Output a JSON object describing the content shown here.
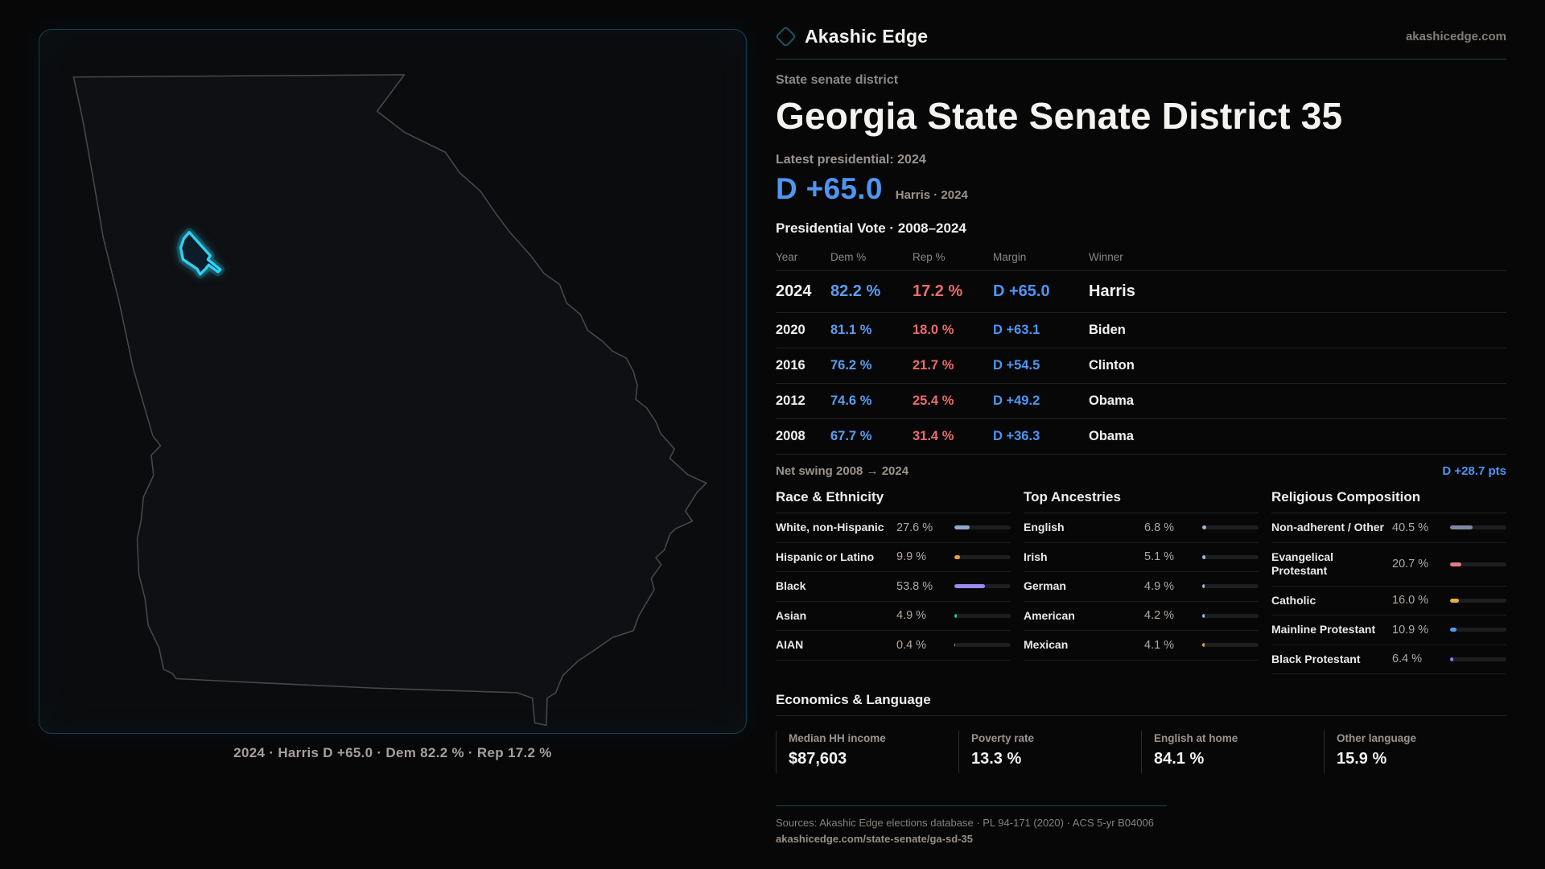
{
  "brand": {
    "name": "Akashic Edge",
    "domain": "akashicedge.com"
  },
  "page": {
    "kicker": "State senate district",
    "title": "Georgia State Senate District 35"
  },
  "headline": {
    "label": "Latest presidential: 2024",
    "margin": "D +65.0",
    "sub": "Harris · 2024"
  },
  "vote_table": {
    "title": "Presidential Vote · 2008–2024",
    "columns": [
      "Year",
      "Dem %",
      "Rep %",
      "Margin",
      "Winner"
    ],
    "rows": [
      {
        "year": "2024",
        "dem": "82.2 %",
        "rep": "17.2 %",
        "margin": "D +65.0",
        "winner": "Harris"
      },
      {
        "year": "2020",
        "dem": "81.1 %",
        "rep": "18.0 %",
        "margin": "D +63.1",
        "winner": "Biden"
      },
      {
        "year": "2016",
        "dem": "76.2 %",
        "rep": "21.7 %",
        "margin": "D +54.5",
        "winner": "Clinton"
      },
      {
        "year": "2012",
        "dem": "74.6 %",
        "rep": "25.4 %",
        "margin": "D +49.2",
        "winner": "Obama"
      },
      {
        "year": "2008",
        "dem": "67.7 %",
        "rep": "31.4 %",
        "margin": "D +36.3",
        "winner": "Obama"
      }
    ]
  },
  "net_swing": {
    "label": "Net swing 2008 → 2024",
    "value": "D +28.7 pts"
  },
  "demographics": [
    {
      "title": "Race & Ethnicity",
      "rows": [
        {
          "label": "White, non-Hispanic",
          "value": "27.6 %",
          "pct": 27.6,
          "color": "#8fa8cc"
        },
        {
          "label": "Hispanic or Latino",
          "value": "9.9 %",
          "pct": 9.9,
          "color": "#e6a23e"
        },
        {
          "label": "Black",
          "value": "53.8 %",
          "pct": 53.8,
          "color": "#9d87f2"
        },
        {
          "label": "Asian",
          "value": "4.9 %",
          "pct": 4.9,
          "color": "#2ec492"
        },
        {
          "label": "AIAN",
          "value": "0.4 %",
          "pct": 0.4,
          "color": "#8fa8cc"
        }
      ]
    },
    {
      "title": "Top Ancestries",
      "rows": [
        {
          "label": "English",
          "value": "6.8 %",
          "pct": 6.8,
          "color": "#9db9dd"
        },
        {
          "label": "Irish",
          "value": "5.1 %",
          "pct": 5.1,
          "color": "#9db9dd"
        },
        {
          "label": "German",
          "value": "4.9 %",
          "pct": 4.9,
          "color": "#9db9dd"
        },
        {
          "label": "American",
          "value": "4.2 %",
          "pct": 4.2,
          "color": "#9db9dd"
        },
        {
          "label": "Mexican",
          "value": "4.1 %",
          "pct": 4.1,
          "color": "#e6a23e"
        }
      ]
    },
    {
      "title": "Religious Composition",
      "rows": [
        {
          "label": "Non-adherent / Other",
          "value": "40.5 %",
          "pct": 40.5,
          "color": "#7b8aa1"
        },
        {
          "label": "Evangelical Protestant",
          "value": "20.7 %",
          "pct": 20.7,
          "color": "#e57d7d"
        },
        {
          "label": "Catholic",
          "value": "16.0 %",
          "pct": 16.0,
          "color": "#e7b13f"
        },
        {
          "label": "Mainline Protestant",
          "value": "10.9 %",
          "pct": 10.9,
          "color": "#4f9ef2"
        },
        {
          "label": "Black Protestant",
          "value": "6.4 %",
          "pct": 6.4,
          "color": "#8d7af0"
        }
      ]
    }
  ],
  "economics": {
    "title": "Economics & Language",
    "stats": [
      {
        "label": "Median HH income",
        "value": "$87,603"
      },
      {
        "label": "Poverty rate",
        "value": "13.3 %"
      },
      {
        "label": "English at home",
        "value": "84.1 %"
      },
      {
        "label": "Other language",
        "value": "15.9 %"
      }
    ]
  },
  "sources": {
    "line1": "Sources: Akashic Edge elections database · PL 94-171 (2020) · ACS 5-yr B04006",
    "line2": "akashicedge.com/state-senate/ga-sd-35"
  },
  "map": {
    "caption": "2024 · Harris D +65.0 · Dem 82.2 % · Rep 17.2 %",
    "district_color": "#2fd0f2"
  }
}
